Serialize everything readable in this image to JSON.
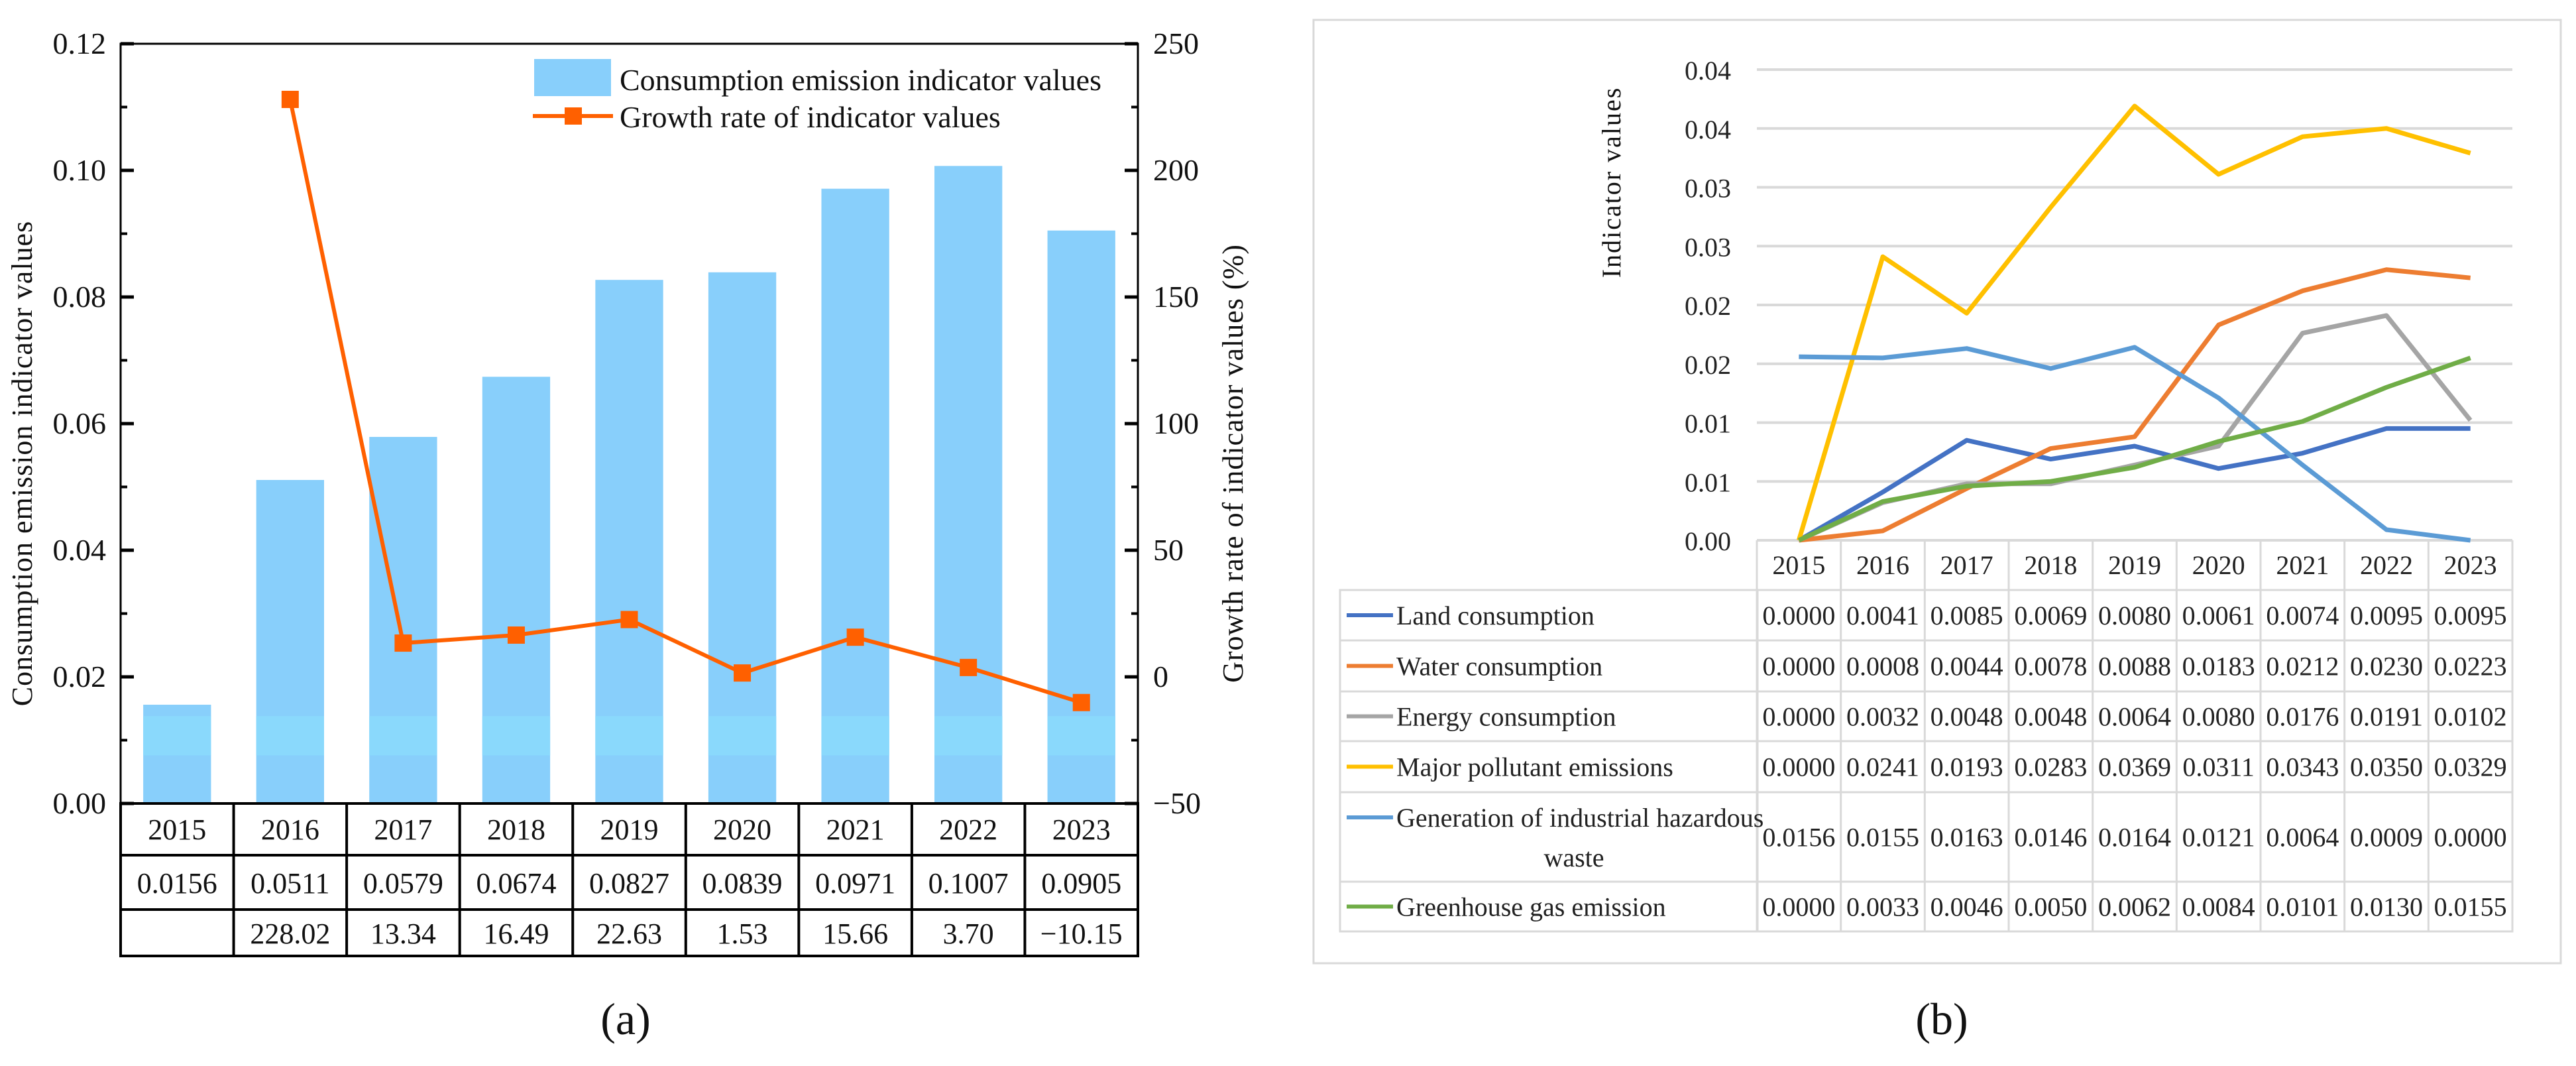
{
  "chart_data": [
    {
      "id": "a",
      "type": "bar+line",
      "caption": "(a)",
      "categories": [
        "2015",
        "2016",
        "2017",
        "2018",
        "2019",
        "2020",
        "2021",
        "2022",
        "2023"
      ],
      "series": [
        {
          "name": "Consumption emission indicator values",
          "type": "bar",
          "axis": "left",
          "color": "#88CFFB",
          "values": [
            0.0156,
            0.0511,
            0.0579,
            0.0674,
            0.0827,
            0.0839,
            0.0971,
            0.1007,
            0.0905
          ],
          "labels": [
            "0.0156",
            "0.0511",
            "0.0579",
            "0.0674",
            "0.0827",
            "0.0839",
            "0.0971",
            "0.1007",
            "0.0905"
          ]
        },
        {
          "name": "Growth rate of indicator values",
          "type": "line",
          "axis": "right",
          "color": "#FF6000",
          "values": [
            null,
            228.02,
            13.34,
            16.49,
            22.63,
            1.53,
            15.66,
            3.7,
            -10.15
          ],
          "labels": [
            "",
            "228.02",
            "13.34",
            "16.49",
            "22.63",
            "1.53",
            "15.66",
            "3.70",
            "−10.15"
          ]
        }
      ],
      "ylabel": "Consumption emission indicator values",
      "y2label": "Growth rate of indicator values (%)",
      "ylim": [
        0,
        0.12
      ],
      "y2lim": [
        -50,
        250
      ],
      "yticks": [
        "0.00",
        "0.02",
        "0.04",
        "0.06",
        "0.08",
        "0.10",
        "0.12"
      ],
      "y2ticks": [
        "−50",
        "0",
        "50",
        "100",
        "150",
        "200",
        "250"
      ],
      "legend_position": "top-right",
      "grid": false
    },
    {
      "id": "b",
      "type": "line",
      "caption": "(b)",
      "categories": [
        "2015",
        "2016",
        "2017",
        "2018",
        "2019",
        "2020",
        "2021",
        "2022",
        "2023"
      ],
      "ylabel": "Indicator values",
      "ylim": [
        0,
        0.04
      ],
      "yticks": [
        "0.00",
        "0.01",
        "0.01",
        "0.02",
        "0.02",
        "0.03",
        "0.03",
        "0.04",
        "0.04"
      ],
      "grid": true,
      "legend_position": "table-below",
      "series": [
        {
          "name": "Land consumption",
          "color": "#4472C4",
          "values": [
            0.0,
            0.0041,
            0.0085,
            0.0069,
            0.008,
            0.0061,
            0.0074,
            0.0095,
            0.0095
          ],
          "labels": [
            "0.0000",
            "0.0041",
            "0.0085",
            "0.0069",
            "0.0080",
            "0.0061",
            "0.0074",
            "0.0095",
            "0.0095"
          ]
        },
        {
          "name": "Water consumption",
          "color": "#ED7D31",
          "values": [
            0.0,
            0.0008,
            0.0044,
            0.0078,
            0.0088,
            0.0183,
            0.0212,
            0.023,
            0.0223
          ],
          "labels": [
            "0.0000",
            "0.0008",
            "0.0044",
            "0.0078",
            "0.0088",
            "0.0183",
            "0.0212",
            "0.0230",
            "0.0223"
          ]
        },
        {
          "name": "Energy consumption",
          "color": "#A5A5A5",
          "values": [
            0.0,
            0.0032,
            0.0048,
            0.0048,
            0.0064,
            0.008,
            0.0176,
            0.0191,
            0.0102
          ],
          "labels": [
            "0.0000",
            "0.0032",
            "0.0048",
            "0.0048",
            "0.0064",
            "0.0080",
            "0.0176",
            "0.0191",
            "0.0102"
          ]
        },
        {
          "name": "Major pollutant emissions",
          "color": "#FFC000",
          "values": [
            0.0,
            0.0241,
            0.0193,
            0.0283,
            0.0369,
            0.0311,
            0.0343,
            0.035,
            0.0329
          ],
          "labels": [
            "0.0000",
            "0.0241",
            "0.0193",
            "0.0283",
            "0.0369",
            "0.0311",
            "0.0343",
            "0.0350",
            "0.0329"
          ]
        },
        {
          "name": "Generation of industrial hazardous waste",
          "name_lines": [
            "Generation of industrial hazardous",
            "waste"
          ],
          "color": "#5B9BD5",
          "values": [
            0.0156,
            0.0155,
            0.0163,
            0.0146,
            0.0164,
            0.0121,
            0.0064,
            0.0009,
            0.0
          ],
          "labels": [
            "0.0156",
            "0.0155",
            "0.0163",
            "0.0146",
            "0.0164",
            "0.0121",
            "0.0064",
            "0.0009",
            "0.0000"
          ]
        },
        {
          "name": "Greenhouse gas emission",
          "color": "#70AD47",
          "values": [
            0.0,
            0.0033,
            0.0046,
            0.005,
            0.0062,
            0.0084,
            0.0101,
            0.013,
            0.0155
          ],
          "labels": [
            "0.0000",
            "0.0033",
            "0.0046",
            "0.0050",
            "0.0062",
            "0.0084",
            "0.0101",
            "0.0130",
            "0.0155"
          ]
        }
      ]
    }
  ]
}
